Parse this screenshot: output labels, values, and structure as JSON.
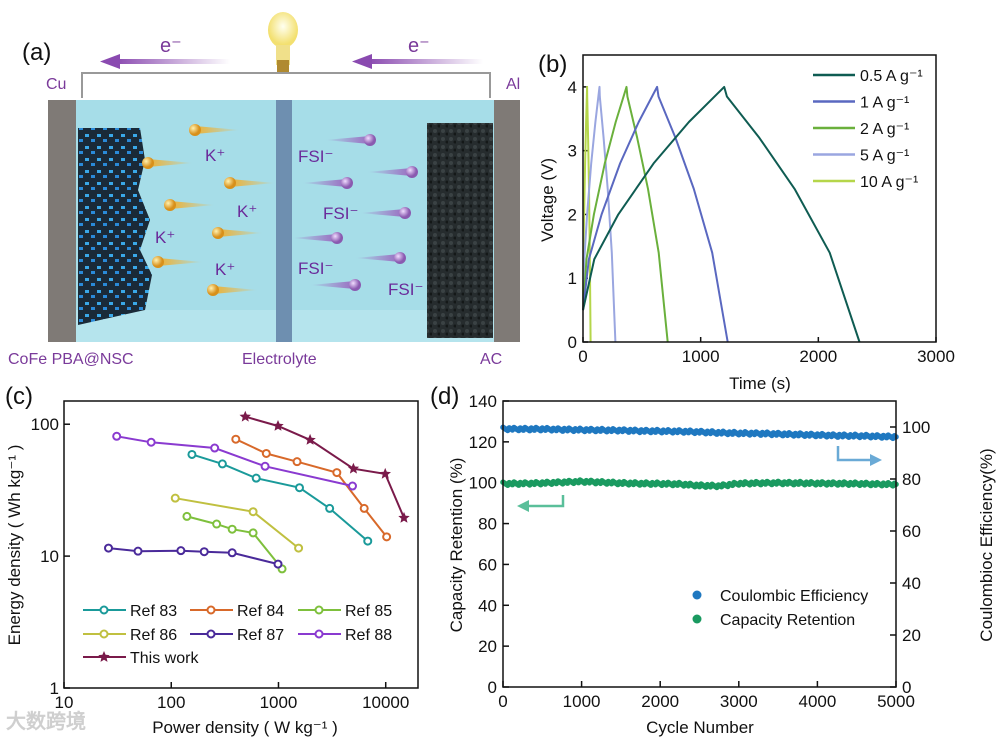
{
  "panel_a": {
    "label": "(a)",
    "electron_left": "e⁻",
    "electron_right": "e⁻",
    "cu": "Cu",
    "al": "Al",
    "kplus": [
      "K⁺",
      "K⁺",
      "K⁺",
      "K⁺"
    ],
    "fsi": [
      "FSI⁻",
      "FSI⁻",
      "FSI⁻",
      "FSI⁻"
    ],
    "anode_label": "CoFe PBA@NSC",
    "electrolyte_label": "Electrolyte",
    "cathode_label": "AC",
    "colors": {
      "ion_k": "#e8a92a",
      "ion_fsi": "#9a6ac0",
      "electrolyte": "#9fdbe6",
      "label": "#7a3a9a"
    }
  },
  "watermark": "大数跨境",
  "chart_data": [
    {
      "panel": "(b)",
      "type": "line",
      "xlabel": "Time (s)",
      "ylabel": "Voltage (V)",
      "xlim": [
        0,
        3000
      ],
      "ylim": [
        0,
        4.5
      ],
      "xticks": [
        "0",
        "1000",
        "2000",
        "3000"
      ],
      "yticks": [
        "0",
        "1",
        "2",
        "3",
        "4"
      ],
      "legend_position": "top-right",
      "series": [
        {
          "name": "0.5 A g⁻¹",
          "color": "#0f5c52",
          "t": [
            0,
            96,
            300,
            600,
            900,
            1200,
            1223,
            1499,
            1798,
            2097,
            2350
          ],
          "v": [
            0.5,
            1.3,
            2.0,
            2.8,
            3.45,
            4.0,
            3.85,
            3.2,
            2.4,
            1.4,
            0
          ]
        },
        {
          "name": "1 A g⁻¹",
          "color": "#5a68c0",
          "t": [
            0,
            50,
            158,
            315,
            473,
            630,
            642,
            786,
            942,
            1098,
            1230
          ],
          "v": [
            0.5,
            1.3,
            2.0,
            2.8,
            3.45,
            4.0,
            3.85,
            3.2,
            2.4,
            1.4,
            0
          ]
        },
        {
          "name": "2 A g⁻¹",
          "color": "#6ab03c",
          "t": [
            0,
            30,
            93,
            185,
            278,
            370,
            377,
            461,
            552,
            643,
            720
          ],
          "v": [
            0.5,
            1.3,
            2.0,
            2.8,
            3.45,
            4.0,
            3.85,
            3.2,
            2.4,
            1.4,
            0
          ]
        },
        {
          "name": "5 A g⁻¹",
          "color": "#9aa6e0",
          "t": [
            0,
            11,
            35,
            70,
            105,
            140,
            143,
            175,
            210,
            245,
            275
          ],
          "v": [
            0.5,
            1.3,
            2.0,
            2.8,
            3.45,
            4.0,
            3.85,
            3.2,
            2.4,
            1.4,
            0
          ]
        },
        {
          "name": "10 A g⁻¹",
          "color": "#b5d64a",
          "t": [
            0,
            3,
            9,
            18,
            26,
            35,
            36,
            43,
            51,
            58,
            65
          ],
          "v": [
            0.5,
            1.3,
            2.0,
            2.8,
            3.45,
            4.0,
            3.85,
            3.2,
            2.4,
            1.4,
            0
          ]
        }
      ]
    },
    {
      "panel": "(c)",
      "type": "line",
      "scale": "log-log",
      "xlabel": "Power density ( W kg⁻¹ )",
      "ylabel": "Energy density ( Wh kg⁻¹ )",
      "xlim": [
        10,
        20000
      ],
      "ylim": [
        1,
        150
      ],
      "xticks": [
        "10",
        "100",
        "1000",
        "10000"
      ],
      "yticks": [
        "1",
        "10",
        "100"
      ],
      "legend_position": "bottom-left",
      "series": [
        {
          "name": "Ref 83",
          "color": "#1a9a9a",
          "marker": "circle",
          "x": [
            156,
            300,
            620,
            1570,
            3000,
            6800
          ],
          "y": [
            59,
            50,
            39,
            33,
            23,
            13
          ]
        },
        {
          "name": "Ref 84",
          "color": "#d8692a",
          "marker": "circle",
          "x": [
            400,
            770,
            1490,
            3500,
            6300,
            10200
          ],
          "y": [
            77,
            60,
            52,
            43,
            23,
            14
          ]
        },
        {
          "name": "Ref 85",
          "color": "#7ec03c",
          "marker": "circle",
          "x": [
            140,
            265,
            370,
            580,
            1080
          ],
          "y": [
            20,
            17.5,
            16,
            15,
            8
          ]
        },
        {
          "name": "Ref 86",
          "color": "#c0c040",
          "marker": "circle",
          "x": [
            109,
            580,
            1540
          ],
          "y": [
            27.5,
            21.7,
            11.5
          ]
        },
        {
          "name": "Ref 87",
          "color": "#4a2a9a",
          "marker": "circle",
          "x": [
            26,
            49,
            123,
            203,
            370,
            990
          ],
          "y": [
            11.5,
            10.9,
            11,
            10.8,
            10.6,
            8.7
          ]
        },
        {
          "name": "Ref 88",
          "color": "#8a3ad0",
          "marker": "circle",
          "x": [
            31,
            65,
            254,
            750,
            4900
          ],
          "y": [
            81,
            73,
            66,
            48,
            34
          ]
        },
        {
          "name": "This work",
          "color": "#7a1a4a",
          "marker": "star",
          "x": [
            490,
            990,
            1970,
            5000,
            9900,
            14800
          ],
          "y": [
            114,
            97,
            76,
            46,
            42,
            19.5
          ]
        }
      ]
    },
    {
      "panel": "(d)",
      "type": "scatter",
      "xlabel": "Cycle Number",
      "ylabel": "Capacity Retention (%)",
      "y2label": "Coulombioc Efficiency(%)",
      "xlim": [
        0,
        5000
      ],
      "ylim": [
        0,
        140
      ],
      "y2lim": [
        0,
        110
      ],
      "xticks": [
        "0",
        "1000",
        "2000",
        "3000",
        "4000",
        "5000"
      ],
      "yticks": [
        "0",
        "20",
        "40",
        "60",
        "80",
        "100",
        "120",
        "140"
      ],
      "y2ticks": [
        "0",
        "20",
        "40",
        "60",
        "80",
        "100"
      ],
      "legend_position": "center-right",
      "x": [
        0,
        250,
        500,
        750,
        1000,
        1250,
        1500,
        1750,
        2000,
        2250,
        2500,
        2750,
        3000,
        3250,
        3500,
        3750,
        4000,
        4250,
        4500,
        4750,
        5000
      ],
      "series": [
        {
          "name": "Coulombic Efficiency",
          "axis": "right",
          "color": "#1f78c0",
          "values": [
            99.3,
            99.2,
            99.2,
            99.0,
            98.9,
            98.8,
            98.7,
            98.5,
            98.4,
            98.3,
            98.1,
            97.8,
            97.6,
            97.5,
            97.3,
            97.1,
            96.9,
            96.7,
            96.6,
            96.4,
            96.2
          ]
        },
        {
          "name": "Capacity Retention",
          "axis": "left",
          "color": "#1a9a60",
          "values": [
            99.5,
            99.6,
            99.8,
            100.2,
            100.6,
            100.2,
            99.8,
            99.6,
            99.5,
            99.3,
            98.6,
            98.4,
            99.6,
            99.8,
            99.9,
            99.8,
            99.7,
            99.6,
            99.5,
            99.3,
            99.2
          ]
        }
      ]
    }
  ]
}
